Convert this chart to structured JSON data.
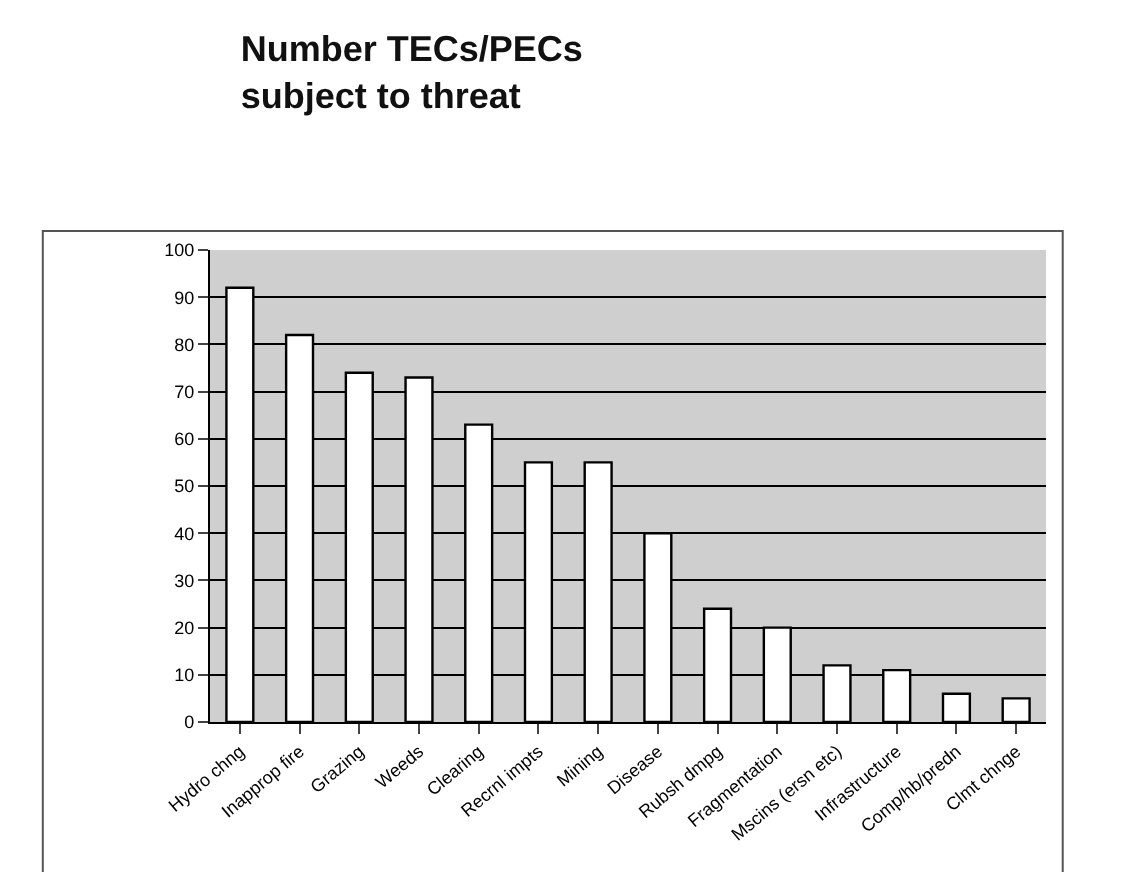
{
  "chart_data": {
    "type": "bar",
    "title": "Number TECs/PECs subject to threat",
    "categories": [
      "Hydro chng",
      "Inapprop fire",
      "Grazing",
      "Weeds",
      "Clearing",
      "Recrnl impts",
      "Mining",
      "Disease",
      "Rubsh dmpg",
      "Fragmentation",
      "Mscins (ersn etc)",
      "Infrastructure",
      "Comp/hb/predn",
      "Clmt chnge"
    ],
    "values": [
      92,
      82,
      74,
      73,
      63,
      55,
      55,
      40,
      24,
      20,
      12,
      11,
      6,
      5
    ],
    "color": "#ffffff",
    "ylim": [
      0,
      100
    ],
    "yticks": [
      0,
      10,
      20,
      30,
      40,
      50,
      60,
      70,
      80,
      90,
      100
    ],
    "grid": "y",
    "legend": false
  }
}
